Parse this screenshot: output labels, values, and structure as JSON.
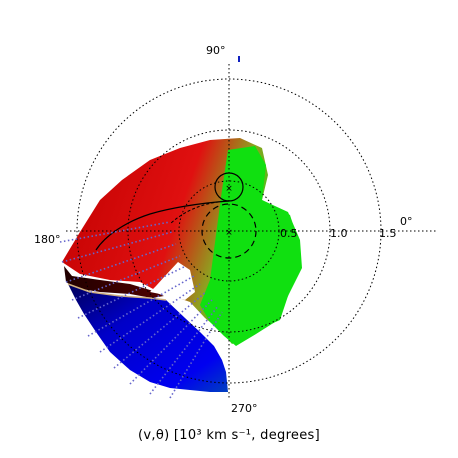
{
  "axis_labels": {
    "angle_90": "90°",
    "angle_180": "180°",
    "angle_270": "270°",
    "angle_0": "0°",
    "r_0_5": "0.5",
    "r_1_0": "1.0",
    "r_1_5": "1.5"
  },
  "caption": "(v,θ) [10³ km s⁻¹, degrees]",
  "colors": {
    "red": "#e00000",
    "green": "#00e000",
    "blue": "#0000e0",
    "grid": "#000000",
    "ticks": "#6666cc"
  }
}
